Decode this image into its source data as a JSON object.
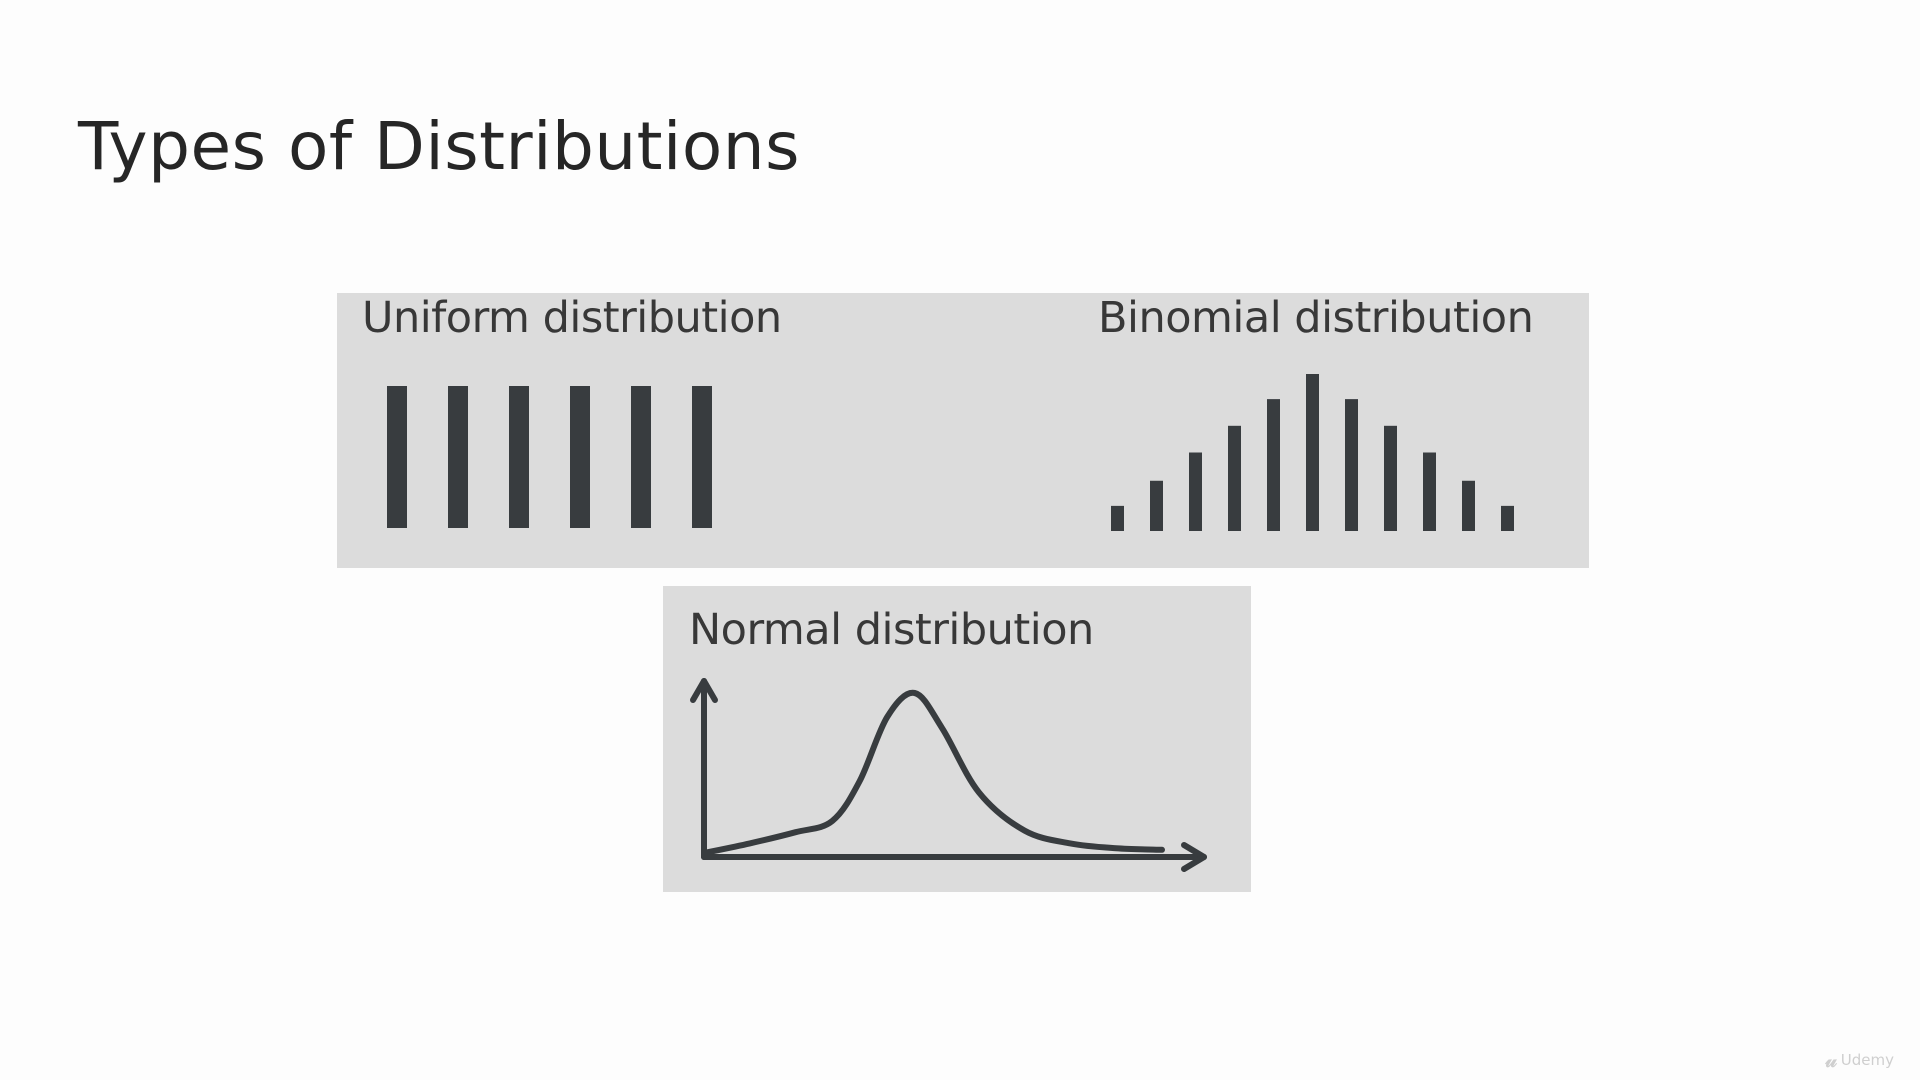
{
  "slide": {
    "title": "Types of Distributions"
  },
  "panels": {
    "uniform_label": "Uniform distribution",
    "binomial_label": "Binomial distribution",
    "normal_label": "Normal distribution"
  },
  "chart_data": [
    {
      "type": "bar",
      "title": "Uniform distribution",
      "values": [
        1,
        1,
        1,
        1,
        1,
        1
      ],
      "bar_color": "#383c3f"
    },
    {
      "type": "bar",
      "title": "Binomial distribution",
      "values": [
        0.16,
        0.32,
        0.5,
        0.67,
        0.84,
        1.0,
        0.84,
        0.67,
        0.5,
        0.32,
        0.16
      ],
      "bar_color": "#383c3f"
    },
    {
      "type": "line",
      "title": "Normal distribution",
      "x": [
        0,
        0.1,
        0.2,
        0.28,
        0.34,
        0.4,
        0.46,
        0.52,
        0.6,
        0.7,
        0.8,
        0.9,
        1.0
      ],
      "values": [
        0.0,
        0.06,
        0.13,
        0.2,
        0.45,
        0.85,
        1.0,
        0.78,
        0.38,
        0.14,
        0.06,
        0.03,
        0.02
      ],
      "line_color": "#383c3f"
    }
  ],
  "watermark": {
    "icon": "udemy-logo-icon",
    "text": "Udemy"
  },
  "colors": {
    "background": "#fdfdfd",
    "panel": "#dcdcdc",
    "ink": "#383c3f"
  }
}
